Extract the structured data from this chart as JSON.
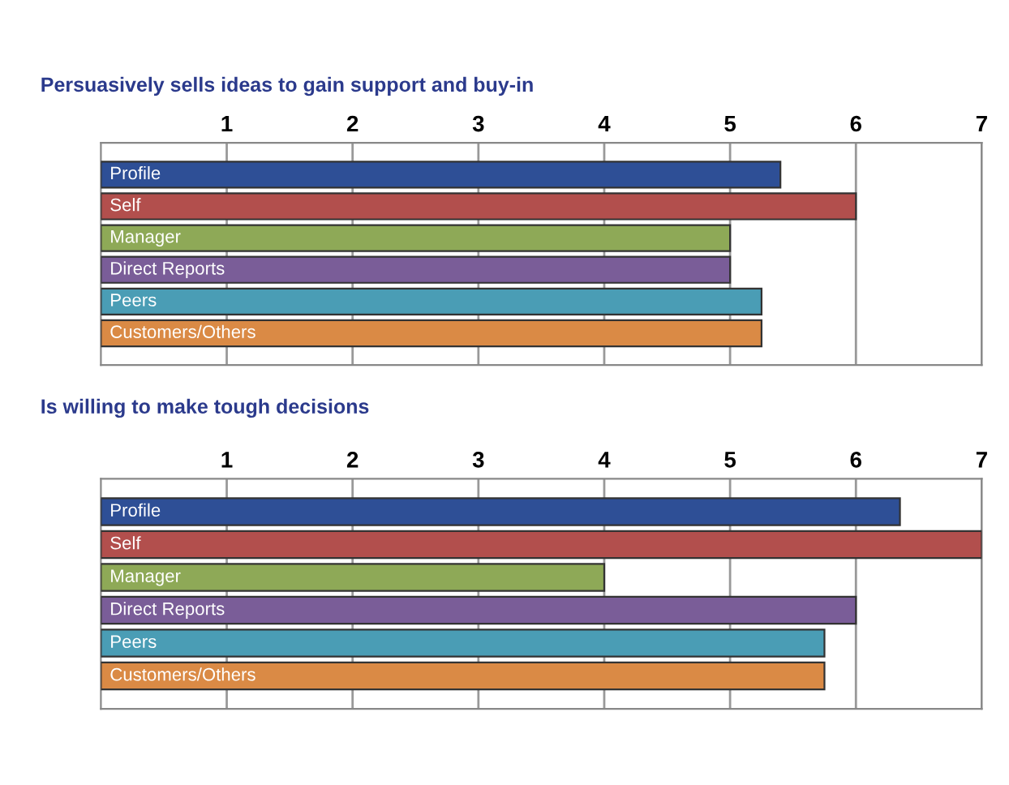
{
  "chart_data": [
    {
      "type": "bar",
      "orientation": "horizontal",
      "title": "Persuasively sells ideas to gain support and buy-in",
      "categories": [
        "Profile",
        "Self",
        "Manager",
        "Direct Reports",
        "Peers",
        "Customers/Others"
      ],
      "values": [
        5.4,
        6.0,
        5.0,
        5.0,
        5.25,
        5.25
      ],
      "colors": [
        "#2e4f96",
        "#b24f4d",
        "#8ea957",
        "#7a5d98",
        "#4a9db5",
        "#da8a45"
      ],
      "xlim": [
        0,
        7
      ],
      "xticks": [
        1,
        2,
        3,
        4,
        5,
        6,
        7
      ],
      "grid": "x",
      "legend": false
    },
    {
      "type": "bar",
      "orientation": "horizontal",
      "title": "Is willing to make tough decisions",
      "categories": [
        "Profile",
        "Self",
        "Manager",
        "Direct Reports",
        "Peers",
        "Customers/Others"
      ],
      "values": [
        6.35,
        7.0,
        4.0,
        6.0,
        5.75,
        5.75
      ],
      "colors": [
        "#2e4f96",
        "#b24f4d",
        "#8ea957",
        "#7a5d98",
        "#4a9db5",
        "#da8a45"
      ],
      "xlim": [
        0,
        7
      ],
      "xticks": [
        1,
        2,
        3,
        4,
        5,
        6,
        7
      ],
      "grid": "x",
      "legend": false
    }
  ]
}
